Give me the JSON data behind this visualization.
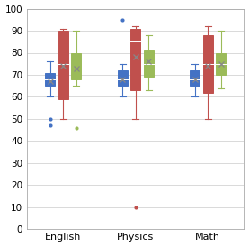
{
  "groups": [
    "English",
    "Physics",
    "Math"
  ],
  "series": {
    "blue": {
      "color": "#4472C4",
      "boxes": [
        {
          "q1": 65,
          "q3": 71,
          "med": 68,
          "mean": 67,
          "whislo": 60,
          "whishi": 76,
          "fliers": [
            47,
            50
          ]
        },
        {
          "q1": 65,
          "q3": 72,
          "med": 68,
          "mean": 68,
          "whislo": 60,
          "whishi": 75,
          "fliers": [
            95
          ]
        },
        {
          "q1": 65,
          "q3": 72,
          "med": 68,
          "mean": 68,
          "whislo": 60,
          "whishi": 75,
          "fliers": []
        }
      ]
    },
    "red": {
      "color": "#C0504D",
      "boxes": [
        {
          "q1": 59,
          "q3": 90,
          "med": 75,
          "mean": 74,
          "whislo": 50,
          "whishi": 91,
          "fliers": []
        },
        {
          "q1": 63,
          "q3": 91,
          "med": 85,
          "mean": 78,
          "whislo": 50,
          "whishi": 92,
          "fliers": [
            10
          ]
        },
        {
          "q1": 62,
          "q3": 88,
          "med": 75,
          "mean": 74,
          "whislo": 50,
          "whishi": 92,
          "fliers": []
        }
      ]
    },
    "green": {
      "color": "#9BBB59",
      "boxes": [
        {
          "q1": 68,
          "q3": 80,
          "med": 73,
          "mean": 73,
          "whislo": 65,
          "whishi": 90,
          "fliers": [
            46
          ]
        },
        {
          "q1": 69,
          "q3": 81,
          "med": 75,
          "mean": 76,
          "whislo": 63,
          "whishi": 88,
          "fliers": []
        },
        {
          "q1": 70,
          "q3": 80,
          "med": 75,
          "mean": 75,
          "whislo": 64,
          "whishi": 90,
          "fliers": []
        }
      ]
    }
  },
  "ylim": [
    0,
    100
  ],
  "yticks": [
    0,
    10,
    20,
    30,
    40,
    50,
    60,
    70,
    80,
    90,
    100
  ],
  "background_color": "#FFFFFF",
  "grid_color": "#D3D3D3",
  "box_width": 0.14,
  "offsets": [
    -0.18,
    0.0,
    0.18
  ],
  "tick_fontsize": 7.5,
  "label_fontsize": 8
}
